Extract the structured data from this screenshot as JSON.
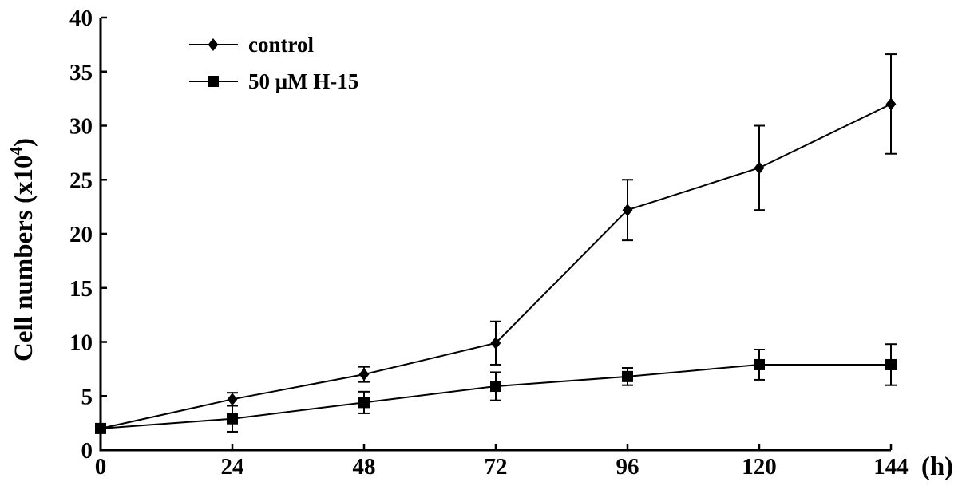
{
  "chart_data": {
    "type": "line",
    "title": "",
    "xlabel": "(h)",
    "ylabel": "Cell numbers (x10",
    "ylabel_superscript": "4",
    "ylabel_tail": ")",
    "x": [
      0,
      24,
      48,
      72,
      96,
      120,
      144
    ],
    "x_ticks": [
      "0",
      "24",
      "48",
      "72",
      "96",
      "120",
      "144"
    ],
    "y_ticks": [
      "0",
      "5",
      "10",
      "15",
      "20",
      "25",
      "30",
      "35",
      "40"
    ],
    "xlim": [
      0,
      144
    ],
    "ylim": [
      0,
      40
    ],
    "grid": false,
    "legend_position": "top-left",
    "series": [
      {
        "name": "control",
        "marker": "diamond",
        "color": "#000000",
        "values": [
          2.0,
          4.7,
          7.0,
          9.9,
          22.2,
          26.1,
          32.0
        ],
        "error": [
          0.2,
          0.6,
          0.7,
          2.0,
          2.8,
          3.9,
          4.6
        ]
      },
      {
        "name": "50 μM H-15",
        "marker": "square",
        "color": "#000000",
        "values": [
          2.0,
          2.9,
          4.4,
          5.9,
          6.8,
          7.9,
          7.9
        ],
        "error": [
          0.2,
          1.2,
          1.0,
          1.3,
          0.8,
          1.4,
          1.9
        ]
      }
    ]
  }
}
